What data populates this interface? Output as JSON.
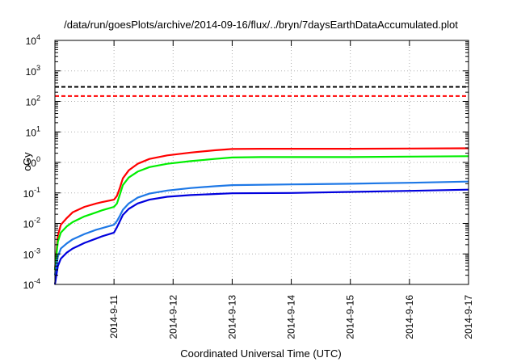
{
  "chart_data": {
    "type": "line",
    "title": "/data/run/goesPlots/archive/2014-09-16/flux/../bryn/7daysEarthDataAccumulated.plot",
    "xlabel": "Coordinated Universal Time (UTC)",
    "ylabel": "cGy",
    "x_axis": {
      "type": "date",
      "range": [
        "2014-09-10",
        "2014-09-17"
      ],
      "ticks": [
        "2014-9-11",
        "2014-9-12",
        "2014-9-13",
        "2014-9-14",
        "2014-9-15",
        "2014-9-16",
        "2014-9-17"
      ]
    },
    "y_axis": {
      "scale": "log",
      "range": [
        0.0001,
        10000
      ],
      "ticks": [
        {
          "base": "10",
          "exp": "-4"
        },
        {
          "base": "10",
          "exp": "-3"
        },
        {
          "base": "10",
          "exp": "-2"
        },
        {
          "base": "10",
          "exp": "-1"
        },
        {
          "base": "10",
          "exp": "0"
        },
        {
          "base": "10",
          "exp": "1"
        },
        {
          "base": "10",
          "exp": "2"
        },
        {
          "base": "10",
          "exp": "3"
        },
        {
          "base": "10",
          "exp": "4"
        }
      ]
    },
    "grid": true,
    "legend": "none",
    "reference_lines": [
      {
        "y": 300,
        "color": "#000000",
        "style": "dashed"
      },
      {
        "y": 150,
        "color": "#ff0000",
        "style": "dashed"
      }
    ],
    "series": [
      {
        "color": "#ff0000",
        "points": [
          [
            "2014-09-10 00:00",
            0.0003
          ],
          [
            "2014-09-10 01:10",
            0.004
          ],
          [
            "2014-09-10 02:24",
            0.009
          ],
          [
            "2014-09-10 04:48",
            0.015
          ],
          [
            "2014-09-10 07:12",
            0.023
          ],
          [
            "2014-09-10 12:00",
            0.035
          ],
          [
            "2014-09-10 16:48",
            0.045
          ],
          [
            "2014-09-10 19:12",
            0.05
          ],
          [
            "2014-09-11 00:00",
            0.06
          ],
          [
            "2014-09-11 01:12",
            0.08
          ],
          [
            "2014-09-11 02:24",
            0.15
          ],
          [
            "2014-09-11 03:36",
            0.3
          ],
          [
            "2014-09-11 06:00",
            0.55
          ],
          [
            "2014-09-11 09:36",
            0.9
          ],
          [
            "2014-09-11 14:24",
            1.3
          ],
          [
            "2014-09-11 21:36",
            1.7
          ],
          [
            "2014-09-12 07:12",
            2.1
          ],
          [
            "2014-09-12 16:48",
            2.5
          ],
          [
            "2014-09-13 00:00",
            2.75
          ],
          [
            "2014-09-13 12:00",
            2.8
          ],
          [
            "2014-09-14 00:00",
            2.8
          ],
          [
            "2014-09-15 00:00",
            2.8
          ],
          [
            "2014-09-16 00:00",
            2.85
          ],
          [
            "2014-09-17 00:00",
            2.9
          ]
        ]
      },
      {
        "color": "#00ee00",
        "points": [
          [
            "2014-09-10 00:00",
            0.0003
          ],
          [
            "2014-09-10 01:10",
            0.0025
          ],
          [
            "2014-09-10 02:24",
            0.005
          ],
          [
            "2014-09-10 04:48",
            0.008
          ],
          [
            "2014-09-10 07:12",
            0.011
          ],
          [
            "2014-09-10 12:00",
            0.017
          ],
          [
            "2014-09-10 16:48",
            0.023
          ],
          [
            "2014-09-10 19:12",
            0.027
          ],
          [
            "2014-09-11 00:00",
            0.035
          ],
          [
            "2014-09-11 01:12",
            0.045
          ],
          [
            "2014-09-11 02:24",
            0.09
          ],
          [
            "2014-09-11 03:36",
            0.18
          ],
          [
            "2014-09-11 06:00",
            0.32
          ],
          [
            "2014-09-11 09:36",
            0.5
          ],
          [
            "2014-09-11 14:24",
            0.7
          ],
          [
            "2014-09-11 21:36",
            0.9
          ],
          [
            "2014-09-12 07:12",
            1.1
          ],
          [
            "2014-09-12 16:48",
            1.3
          ],
          [
            "2014-09-13 00:00",
            1.45
          ],
          [
            "2014-09-13 12:00",
            1.5
          ],
          [
            "2014-09-14 00:00",
            1.5
          ],
          [
            "2014-09-15 00:00",
            1.5
          ],
          [
            "2014-09-16 00:00",
            1.55
          ],
          [
            "2014-09-17 00:00",
            1.6
          ]
        ]
      },
      {
        "color": "#1e78e6",
        "points": [
          [
            "2014-09-10 00:00",
            0.0002
          ],
          [
            "2014-09-10 01:10",
            0.0008
          ],
          [
            "2014-09-10 02:24",
            0.0015
          ],
          [
            "2014-09-10 04:48",
            0.0022
          ],
          [
            "2014-09-10 07:12",
            0.003
          ],
          [
            "2014-09-10 12:00",
            0.0045
          ],
          [
            "2014-09-10 16:48",
            0.0062
          ],
          [
            "2014-09-10 19:12",
            0.007
          ],
          [
            "2014-09-11 00:00",
            0.009
          ],
          [
            "2014-09-11 01:12",
            0.012
          ],
          [
            "2014-09-11 02:24",
            0.018
          ],
          [
            "2014-09-11 03:36",
            0.028
          ],
          [
            "2014-09-11 06:00",
            0.045
          ],
          [
            "2014-09-11 09:36",
            0.07
          ],
          [
            "2014-09-11 14:24",
            0.095
          ],
          [
            "2014-09-11 21:36",
            0.12
          ],
          [
            "2014-09-12 07:12",
            0.145
          ],
          [
            "2014-09-12 16:48",
            0.165
          ],
          [
            "2014-09-13 00:00",
            0.18
          ],
          [
            "2014-09-14 00:00",
            0.19
          ],
          [
            "2014-09-15 00:00",
            0.2
          ],
          [
            "2014-09-16 00:00",
            0.215
          ],
          [
            "2014-09-17 00:00",
            0.235
          ]
        ]
      },
      {
        "color": "#0000dd",
        "points": [
          [
            "2014-09-10 00:00",
            0.0001
          ],
          [
            "2014-09-10 01:10",
            0.0004
          ],
          [
            "2014-09-10 02:24",
            0.0007
          ],
          [
            "2014-09-10 04:48",
            0.0011
          ],
          [
            "2014-09-10 07:12",
            0.0015
          ],
          [
            "2014-09-10 12:00",
            0.0023
          ],
          [
            "2014-09-10 16:48",
            0.0032
          ],
          [
            "2014-09-10 19:12",
            0.0038
          ],
          [
            "2014-09-11 00:00",
            0.005
          ],
          [
            "2014-09-11 01:12",
            0.0075
          ],
          [
            "2014-09-11 02:24",
            0.012
          ],
          [
            "2014-09-11 03:36",
            0.019
          ],
          [
            "2014-09-11 06:00",
            0.03
          ],
          [
            "2014-09-11 09:36",
            0.045
          ],
          [
            "2014-09-11 14:24",
            0.06
          ],
          [
            "2014-09-11 21:36",
            0.075
          ],
          [
            "2014-09-12 07:12",
            0.085
          ],
          [
            "2014-09-12 16:48",
            0.092
          ],
          [
            "2014-09-13 00:00",
            0.097
          ],
          [
            "2014-09-14 00:00",
            0.1
          ],
          [
            "2014-09-15 00:00",
            0.108
          ],
          [
            "2014-09-16 00:00",
            0.117
          ],
          [
            "2014-09-17 00:00",
            0.128
          ]
        ]
      }
    ]
  }
}
